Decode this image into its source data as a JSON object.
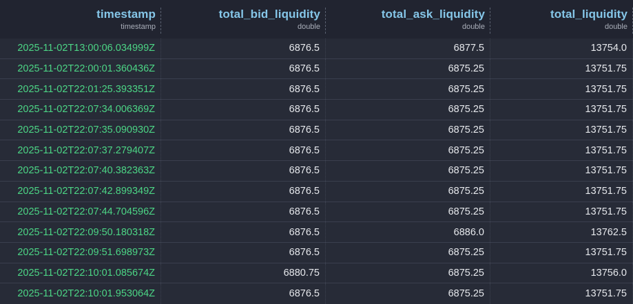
{
  "table": {
    "columns": [
      {
        "label": "timestamp",
        "type": "timestamp"
      },
      {
        "label": "total_bid_liquidity",
        "type": "double"
      },
      {
        "label": "total_ask_liquidity",
        "type": "double"
      },
      {
        "label": "total_liquidity",
        "type": "double"
      }
    ],
    "rows": [
      [
        "2025-11-02T13:00:06.034999Z",
        "6876.5",
        "6877.5",
        "13754.0"
      ],
      [
        "2025-11-02T22:00:01.360436Z",
        "6876.5",
        "6875.25",
        "13751.75"
      ],
      [
        "2025-11-02T22:01:25.393351Z",
        "6876.5",
        "6875.25",
        "13751.75"
      ],
      [
        "2025-11-02T22:07:34.006369Z",
        "6876.5",
        "6875.25",
        "13751.75"
      ],
      [
        "2025-11-02T22:07:35.090930Z",
        "6876.5",
        "6875.25",
        "13751.75"
      ],
      [
        "2025-11-02T22:07:37.279407Z",
        "6876.5",
        "6875.25",
        "13751.75"
      ],
      [
        "2025-11-02T22:07:40.382363Z",
        "6876.5",
        "6875.25",
        "13751.75"
      ],
      [
        "2025-11-02T22:07:42.899349Z",
        "6876.5",
        "6875.25",
        "13751.75"
      ],
      [
        "2025-11-02T22:07:44.704596Z",
        "6876.5",
        "6875.25",
        "13751.75"
      ],
      [
        "2025-11-02T22:09:50.180318Z",
        "6876.5",
        "6886.0",
        "13762.5"
      ],
      [
        "2025-11-02T22:09:51.698973Z",
        "6876.5",
        "6875.25",
        "13751.75"
      ],
      [
        "2025-11-02T22:10:01.085674Z",
        "6880.75",
        "6875.25",
        "13756.0"
      ],
      [
        "2025-11-02T22:10:01.953064Z",
        "6876.5",
        "6875.25",
        "13751.75"
      ]
    ]
  },
  "colors": {
    "header-bg": "#212430",
    "row-bg": "#272b37",
    "row-border": "#3a3f4e",
    "col-sep": "#3d4250",
    "header-sep": "#5a6170",
    "header-title": "#85c6e8",
    "type-label": "#a9aeb9",
    "ts-green": "#4cd585",
    "num-white": "#e6e8ec"
  }
}
